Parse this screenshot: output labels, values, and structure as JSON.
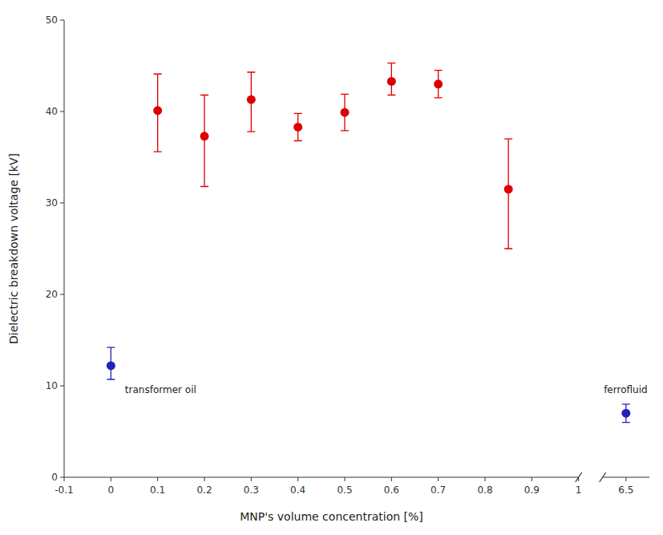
{
  "chart_data": [
    {
      "type": "scatter",
      "x_label": "MNP's volume concentration [%]",
      "y_label": "Dielectric breakdown voltage [kV]",
      "xlim": [
        -0.1,
        1.0
      ],
      "xticks": [
        -0.1,
        0,
        0.1,
        0.2,
        0.3,
        0.4,
        0.5,
        0.6,
        0.7,
        0.8,
        0.9,
        1
      ],
      "ylim": [
        0,
        50
      ],
      "yticks": [
        0,
        10,
        20,
        30,
        40,
        50
      ],
      "grid": false,
      "series": [
        {
          "color": "#dd0000",
          "marker": "circle",
          "x": [
            0.1,
            0.2,
            0.3,
            0.4,
            0.5,
            0.6,
            0.7,
            0.85
          ],
          "values": [
            40.1,
            37.3,
            41.3,
            38.3,
            39.9,
            43.3,
            43.0,
            31.5
          ],
          "yerr_lower": [
            4.5,
            5.5,
            3.5,
            1.5,
            2.0,
            1.5,
            1.5,
            6.5
          ],
          "yerr_upper": [
            4.0,
            4.5,
            3.0,
            1.5,
            2.0,
            2.0,
            1.5,
            5.5
          ]
        },
        {
          "color": "#2222bb",
          "marker": "circle",
          "x": [
            0.0
          ],
          "values": [
            12.2
          ],
          "yerr_lower": [
            1.5
          ],
          "yerr_upper": [
            2.0
          ]
        }
      ],
      "annotations": [
        {
          "text": "transformer oil",
          "x": 0.03,
          "y": 9.2
        }
      ]
    },
    {
      "type": "scatter",
      "xlim": [
        6.2,
        6.8
      ],
      "xticks": [
        6.5
      ],
      "ylim": [
        0,
        50
      ],
      "tick_labels": "x",
      "grid": false,
      "series": [
        {
          "color": "#2222bb",
          "marker": "circle",
          "x": [
            6.5
          ],
          "values": [
            7.0
          ],
          "yerr_lower": [
            1.0
          ],
          "yerr_upper": [
            1.0
          ]
        }
      ],
      "annotations": [
        {
          "text": "ferrofluid",
          "x": 6.215,
          "y": 9.2
        }
      ]
    }
  ]
}
